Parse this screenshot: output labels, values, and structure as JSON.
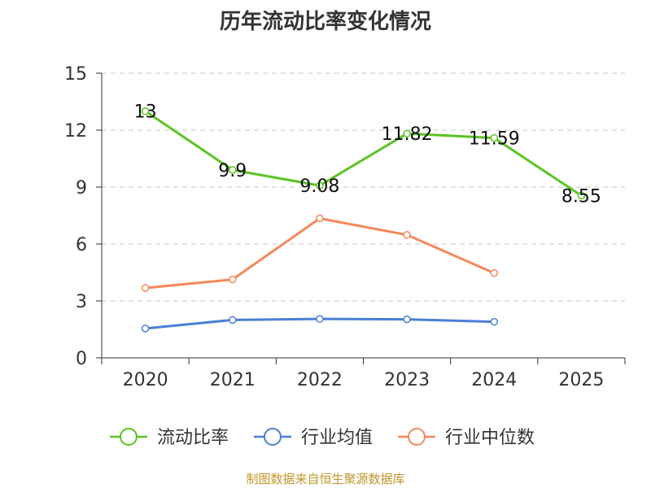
{
  "title": "历年流动比率变化情况",
  "source": "制图数据来自恒生聚源数据库",
  "colors": {
    "current_ratio": "#5bc424",
    "industry_mean": "#4a7fd6",
    "industry_median": "#f5885b",
    "source_text": "#c0962a"
  },
  "chart_data": {
    "type": "line",
    "title": "历年流动比率变化情况",
    "categories": [
      "2020",
      "2021",
      "2022",
      "2023",
      "2024",
      "2025"
    ],
    "ylim": [
      0,
      15
    ],
    "yticks": [
      0,
      3,
      6,
      9,
      12,
      15
    ],
    "grid": true,
    "legend_position": "bottom",
    "series": [
      {
        "key": "current_ratio",
        "name": "流动比率",
        "values": [
          13,
          9.9,
          9.08,
          11.82,
          11.59,
          8.55
        ],
        "labels": [
          "13",
          "9.9",
          "9.08",
          "11.82",
          "11.59",
          "8.55"
        ]
      },
      {
        "key": "industry_mean",
        "name": "行业均值",
        "values": [
          1.55,
          2.0,
          2.05,
          2.03,
          1.9,
          null
        ]
      },
      {
        "key": "industry_median",
        "name": "行业中位数",
        "values": [
          3.68,
          4.13,
          7.35,
          6.48,
          4.47,
          null
        ]
      }
    ]
  }
}
